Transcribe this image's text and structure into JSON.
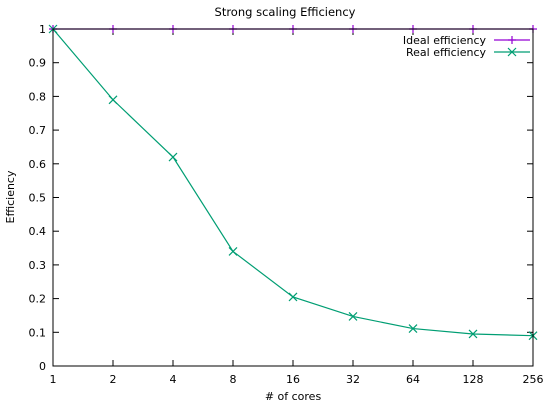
{
  "chart_data": {
    "type": "line",
    "title": "Strong scaling Efficiency",
    "xlabel": "# of cores",
    "ylabel": "Efficiency",
    "x_scale": "log2",
    "x": [
      1,
      2,
      4,
      8,
      16,
      32,
      64,
      128,
      256
    ],
    "x_tick_labels": [
      "1",
      "2",
      "4",
      "8",
      "16",
      "32",
      "64",
      "128",
      "256"
    ],
    "ylim": [
      0,
      1
    ],
    "y_ticks": [
      0,
      0.1,
      0.2,
      0.3,
      0.4,
      0.5,
      0.6,
      0.7,
      0.8,
      0.9,
      1
    ],
    "y_tick_labels": [
      "0",
      "0.1",
      "0.2",
      "0.3",
      "0.4",
      "0.5",
      "0.6",
      "0.7",
      "0.8",
      "0.9",
      "1"
    ],
    "grid": false,
    "legend_position": "top-right",
    "series": [
      {
        "name": "Ideal efficiency",
        "color": "#9400d3",
        "marker": "plus",
        "values": [
          1,
          1,
          1,
          1,
          1,
          1,
          1,
          1,
          1
        ]
      },
      {
        "name": "Real efficiency",
        "color": "#009e73",
        "marker": "cross",
        "values": [
          1,
          0.79,
          0.62,
          0.34,
          0.205,
          0.147,
          0.111,
          0.095,
          0.09
        ]
      }
    ]
  }
}
